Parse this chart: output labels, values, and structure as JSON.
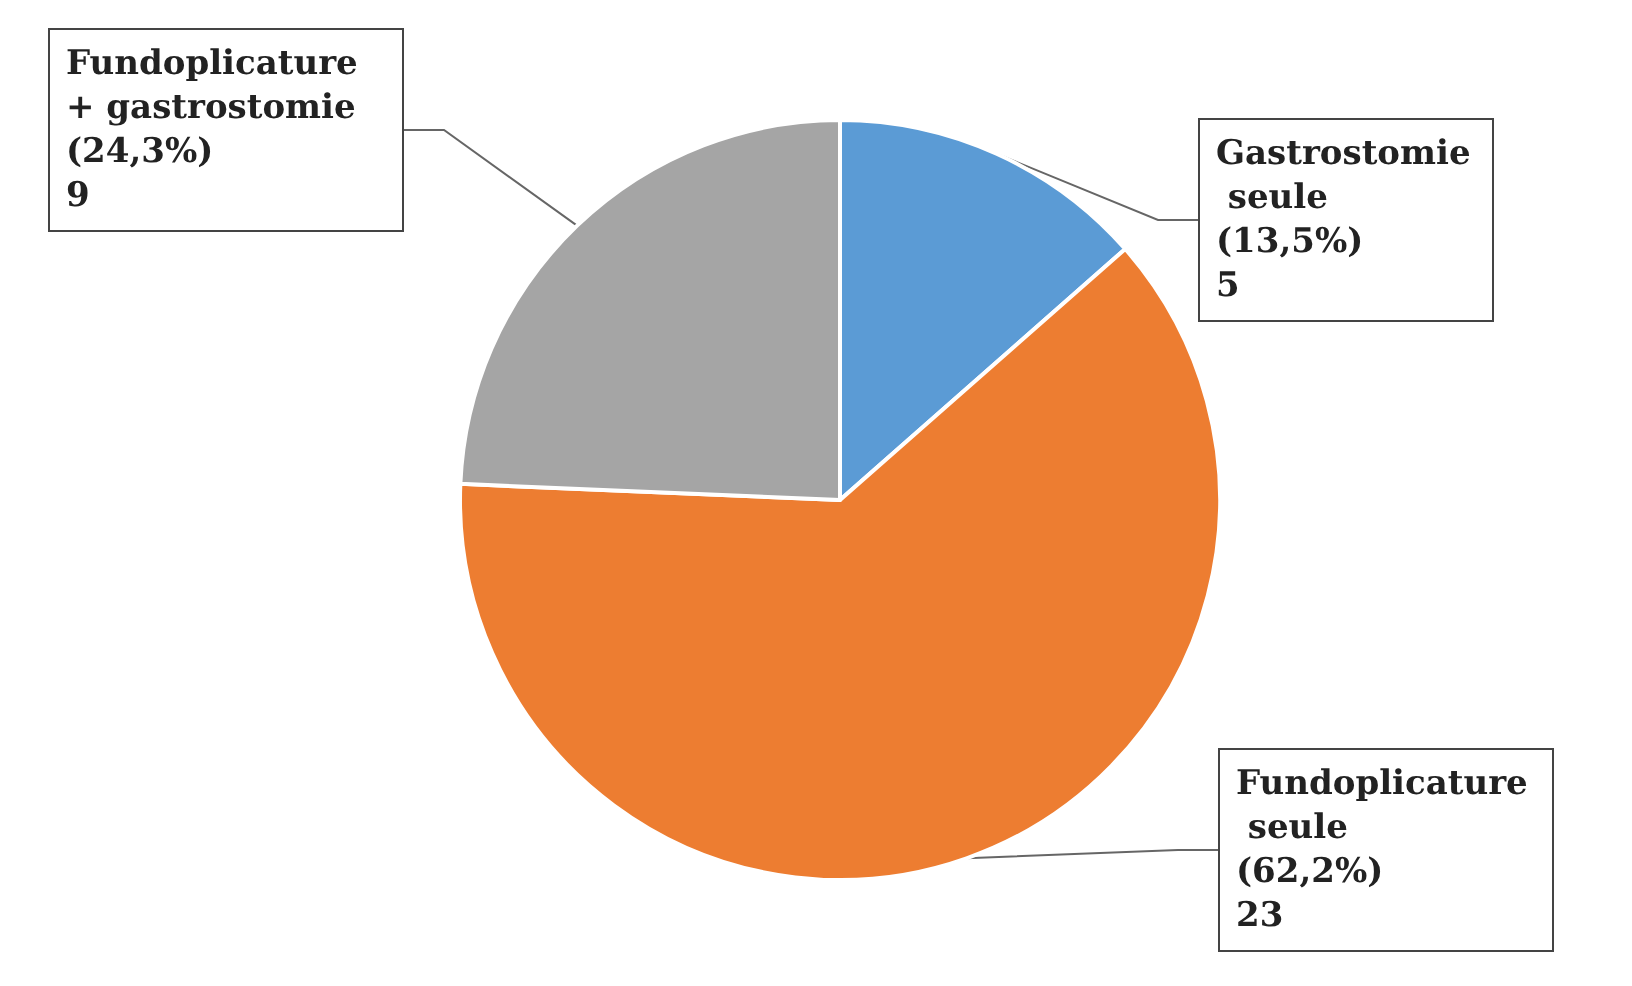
{
  "chart_data": {
    "type": "pie",
    "categories": [
      "Gastrostomie seule",
      "Fundoplicature seule",
      "Fundoplicature + gastrostomie"
    ],
    "values": [
      5,
      23,
      9
    ],
    "value_labels": [
      "(13,5%)\n5",
      "(62,2%)\n23",
      "(24,3%)\n9"
    ],
    "colors": [
      "#5b9bd5",
      "#ed7d31",
      "#a5a5a5"
    ],
    "legend": false
  }
}
